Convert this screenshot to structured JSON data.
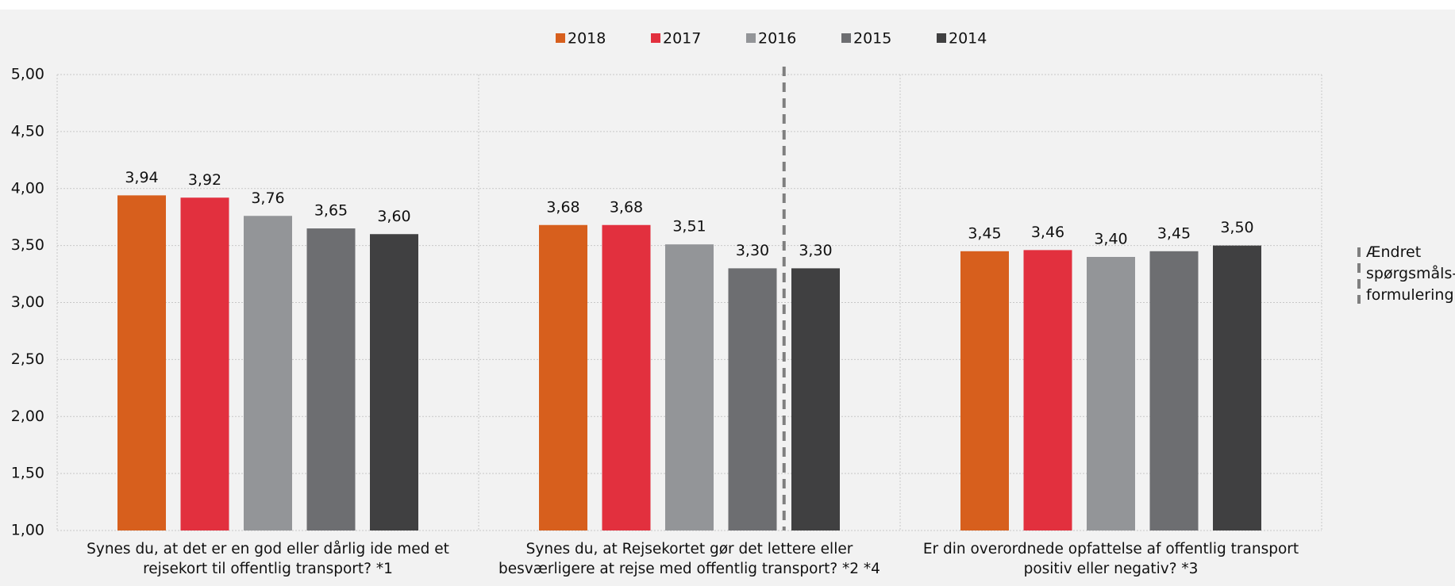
{
  "chart_data": {
    "type": "bar",
    "categories": [
      "Synes du, at det er en god eller dårlig ide med et\nrejsekort til offentlig transport? *1",
      "Synes du, at Rejsekortet gør det lettere eller\nbesværligere at rejse med offentlig transport? *2 *4",
      "Er din overordnede opfattelse af offentlig transport\npositiv eller negativ? *3"
    ],
    "series": [
      {
        "name": "2018",
        "color": "#d75f1d",
        "values": [
          3.94,
          3.68,
          3.45
        ],
        "value_labels": [
          "3,94",
          "3,68",
          "3,45"
        ]
      },
      {
        "name": "2017",
        "color": "#e2303e",
        "values": [
          3.92,
          3.68,
          3.46
        ],
        "value_labels": [
          "3,92",
          "3,68",
          "3,46"
        ]
      },
      {
        "name": "2016",
        "color": "#939598",
        "values": [
          3.76,
          3.51,
          3.4
        ],
        "value_labels": [
          "3,76",
          "3,51",
          "3,40"
        ]
      },
      {
        "name": "2015",
        "color": "#6d6e71",
        "values": [
          3.65,
          3.3,
          3.45
        ],
        "value_labels": [
          "3,65",
          "3,30",
          "3,45"
        ]
      },
      {
        "name": "2014",
        "color": "#404041",
        "values": [
          3.6,
          3.3,
          3.5
        ],
        "value_labels": [
          "3,60",
          "3,30",
          "3,50"
        ]
      }
    ],
    "ylim": [
      1,
      5
    ],
    "yticks": [
      {
        "value": 1,
        "label": "1,00"
      },
      {
        "value": 1.5,
        "label": "1,50"
      },
      {
        "value": 2,
        "label": "2,00"
      },
      {
        "value": 2.5,
        "label": "2,50"
      },
      {
        "value": 3,
        "label": "3,00"
      },
      {
        "value": 3.5,
        "label": "3,50"
      },
      {
        "value": 4,
        "label": "4,00"
      },
      {
        "value": 4.5,
        "label": "4,50"
      },
      {
        "value": 5,
        "label": "5,00"
      }
    ],
    "grid": true,
    "legend": "top",
    "annotation": "Ændret\nspørgsmåls-\nformulering"
  }
}
